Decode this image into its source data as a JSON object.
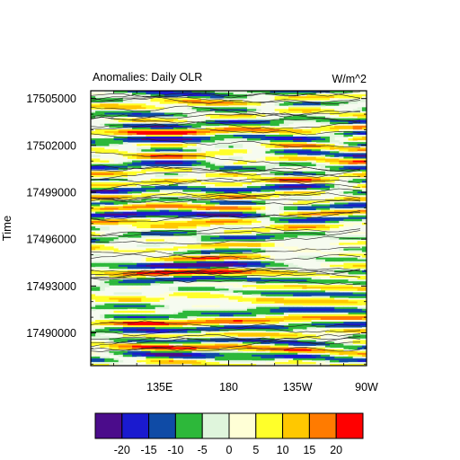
{
  "chart_data": {
    "type": "heatmap",
    "title": "Anomalies: Daily OLR",
    "units_label": "W/m^2",
    "ylabel": "Time",
    "xlabel": "",
    "x_ticks": [
      "135E",
      "180",
      "135W",
      "90W"
    ],
    "x_range": [
      "90E",
      "90W"
    ],
    "y_ticks": [
      17490000,
      17493000,
      17496000,
      17499000,
      17502000,
      17505000
    ],
    "y_range": [
      17487900,
      17505500
    ],
    "grid": false,
    "colorbar": {
      "placement": "bottom",
      "levels": [
        -20,
        -15,
        -10,
        -5,
        0,
        5,
        10,
        15,
        20
      ],
      "colors": [
        "#4b0c8b",
        "#1a1acf",
        "#0f4ba6",
        "#2db83a",
        "#dff5dc",
        "#ffffd6",
        "#ffff2a",
        "#ffc800",
        "#ff7b00",
        "#ff0000"
      ]
    }
  }
}
